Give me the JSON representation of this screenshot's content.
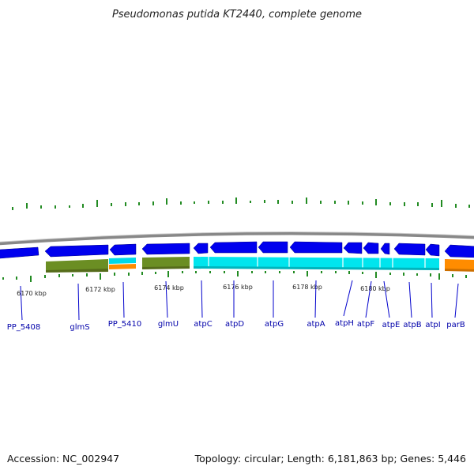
{
  "title": "Pseudomonas putida KT2440, complete genome",
  "footer": {
    "accession": "Accession: NC_002947",
    "summary": "Topology: circular; Length: 6,181,863 bp; Genes: 5,446"
  },
  "colors": {
    "backbone": "#888888",
    "gene_arrow": "#0000ee",
    "cog_green": "#6b8e23",
    "cog_cyan": "#00e5ee",
    "cog_orange": "#ff8c00",
    "gc_skew": "#228b22",
    "label": "#0000aa"
  },
  "scale": {
    "labels": [
      "6170 kbp",
      "6172 kbp",
      "6174 kbp",
      "6176 kbp",
      "6178 kbp",
      "6180 kbp"
    ]
  },
  "genes": [
    {
      "label": "PP_5408"
    },
    {
      "label": "glmS"
    },
    {
      "label": "PP_5410"
    },
    {
      "label": "glmU"
    },
    {
      "label": "atpC"
    },
    {
      "label": "atpD"
    },
    {
      "label": "atpG"
    },
    {
      "label": "atpA"
    },
    {
      "label": "atpH"
    },
    {
      "label": "atpF"
    },
    {
      "label": "atpE"
    },
    {
      "label": "atpB"
    },
    {
      "label": "atpI"
    },
    {
      "label": "parB"
    }
  ]
}
